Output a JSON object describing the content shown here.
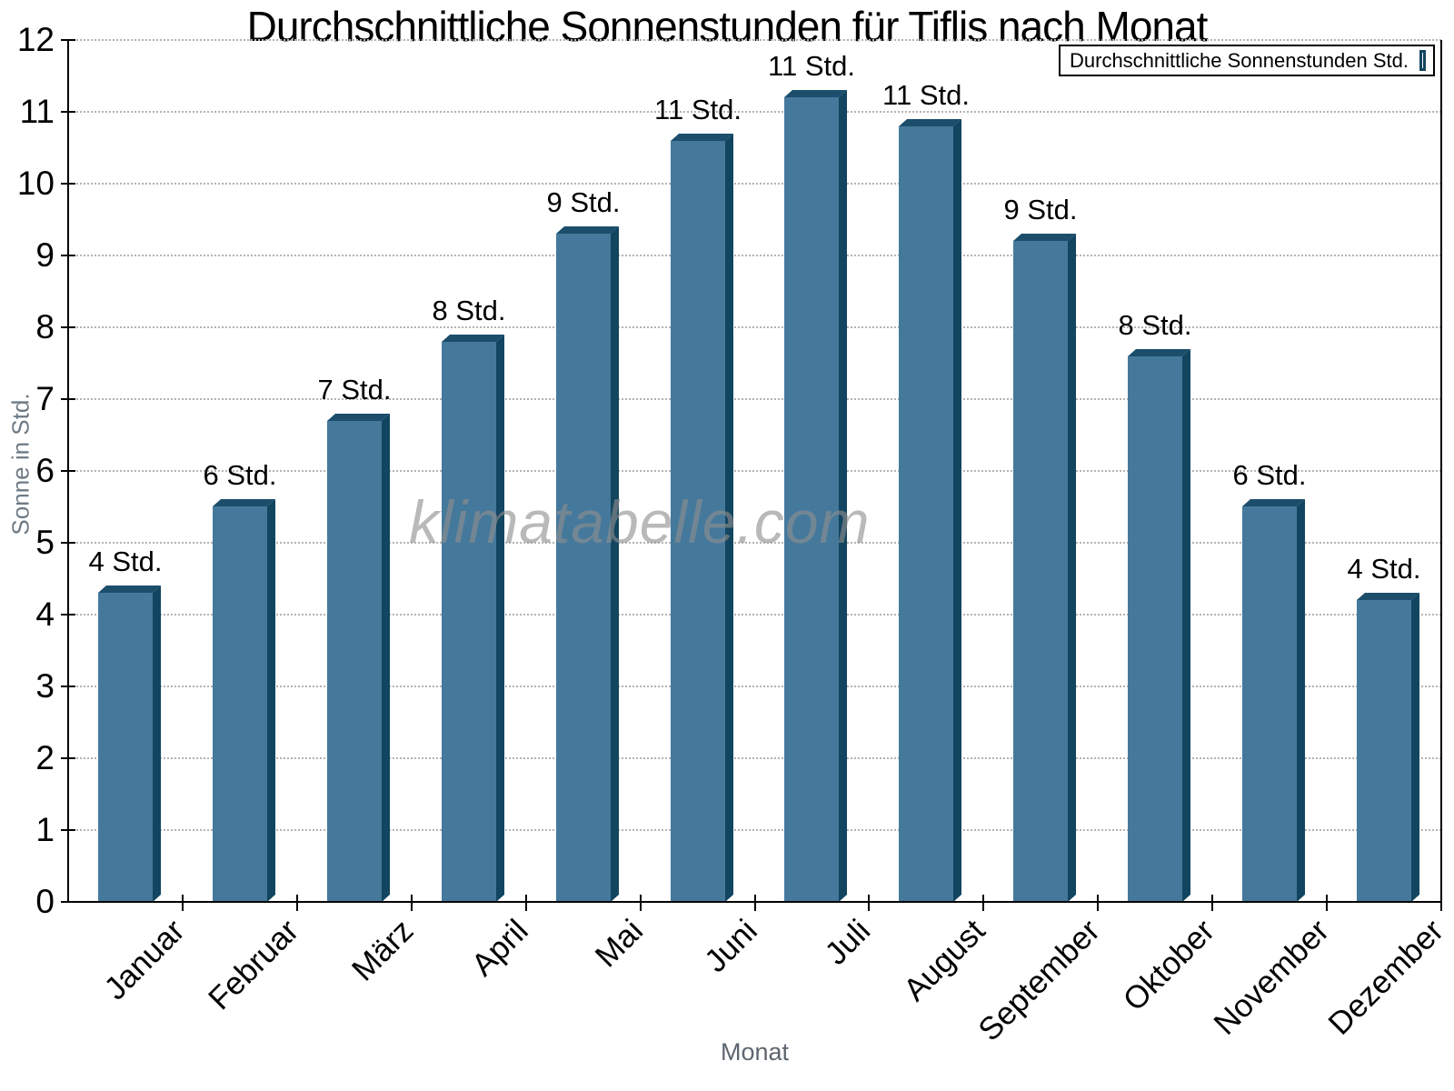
{
  "title": "Durchschnittliche Sonnenstunden für Tiflis nach Monat",
  "legend": {
    "label": "Durchschnittliche Sonnenstunden Std.",
    "position": "top-right"
  },
  "watermark": "klimatabelle.com",
  "axes": {
    "x_title": "Monat",
    "y_title": "Sonne in Std."
  },
  "colors": {
    "bar_face": "#45799C",
    "bar_top": "#1C4E6C",
    "bar_side": "#12455F",
    "gridline": "#b3b3b3",
    "axis": "#000000"
  },
  "chart_data": {
    "type": "bar",
    "title": "Durchschnittliche Sonnenstunden für Tiflis nach Monat",
    "xlabel": "Monat",
    "ylabel": "Sonne in Std.",
    "categories": [
      "Januar",
      "Februar",
      "März",
      "April",
      "Mai",
      "Juni",
      "Juli",
      "August",
      "September",
      "Oktober",
      "November",
      "Dezember"
    ],
    "series": [
      {
        "name": "Durchschnittliche Sonnenstunden Std.",
        "values": [
          4.3,
          5.5,
          6.7,
          7.8,
          9.3,
          10.6,
          11.2,
          10.8,
          9.2,
          7.6,
          5.5,
          4.2
        ],
        "data_labels": [
          "4 Std.",
          "6 Std.",
          "7 Std.",
          "8 Std.",
          "9 Std.",
          "11 Std.",
          "11 Std.",
          "11 Std.",
          "9 Std.",
          "8 Std.",
          "6 Std.",
          "4 Std."
        ]
      }
    ],
    "ylim": [
      0,
      12
    ],
    "yticks": [
      0,
      1,
      2,
      3,
      4,
      5,
      6,
      7,
      8,
      9,
      10,
      11,
      12
    ],
    "grid": "horizontal-dotted",
    "legend_position": "top-right",
    "bar_style": "3d-extruded"
  }
}
